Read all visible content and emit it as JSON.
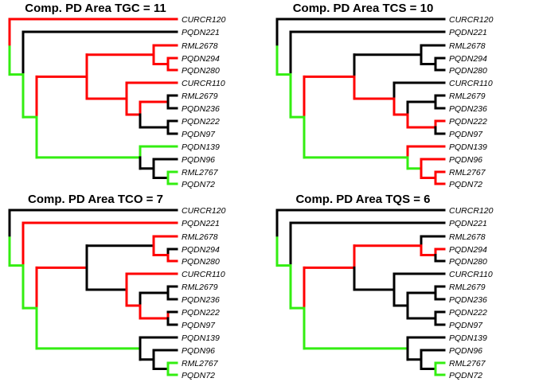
{
  "colors": {
    "black": "#000000",
    "red": "#ff0000",
    "green": "#33ee11"
  },
  "tips": [
    "CURCR120",
    "PQDN221",
    "RML2678",
    "PQDN294",
    "PQDN280",
    "CURCR110",
    "RML2679",
    "PQDN236",
    "PQDN222",
    "PQDN97",
    "PQDN139",
    "PQDN96",
    "RML2767",
    "PQDN72"
  ],
  "panels": [
    {
      "title": "Comp. PD Area TGC = 11",
      "edges": {
        "e1": "red",
        "e2": "green",
        "e3": "black",
        "e4": "green",
        "e5": "red",
        "e6": "red",
        "e7": "red",
        "e8": "red",
        "e9": "red",
        "e10": "red",
        "e11": "red",
        "e12": "red",
        "e13": "red",
        "e14": "red",
        "e15": "black",
        "e16": "black",
        "e17": "black",
        "e18": "black",
        "e19": "black",
        "e20": "black",
        "e21": "black",
        "e22": "green",
        "e23": "black",
        "e24": "black",
        "e25": "green",
        "e26": "green",
        "e27": "green"
      }
    },
    {
      "title": "Comp. PD Area TCS = 10",
      "edges": {
        "e1": "black",
        "e2": "green",
        "e3": "black",
        "e4": "green",
        "e5": "red",
        "e6": "black",
        "e7": "black",
        "e8": "black",
        "e9": "black",
        "e10": "black",
        "e11": "red",
        "e12": "black",
        "e13": "red",
        "e14": "black",
        "e15": "black",
        "e16": "black",
        "e17": "red",
        "e18": "red",
        "e19": "red",
        "e20": "black",
        "e21": "green",
        "e22": "red",
        "e23": "red",
        "e24": "red",
        "e25": "red",
        "e26": "red",
        "e27": "green"
      }
    },
    {
      "title": "Comp. PD Area TCO = 7",
      "edges": {
        "e1": "black",
        "e2": "green",
        "e3": "red",
        "e4": "green",
        "e5": "red",
        "e6": "black",
        "e7": "red",
        "e8": "red",
        "e9": "black",
        "e10": "red",
        "e11": "black",
        "e12": "red",
        "e13": "red",
        "e14": "black",
        "e15": "black",
        "e16": "black",
        "e17": "red",
        "e18": "red",
        "e19": "black",
        "e20": "black",
        "e21": "black",
        "e22": "black",
        "e23": "black",
        "e24": "black",
        "e25": "green",
        "e26": "green",
        "e27": "green"
      }
    },
    {
      "title": "Comp. PD Area TQS = 6",
      "edges": {
        "e1": "black",
        "e2": "green",
        "e3": "black",
        "e4": "green",
        "e5": "red",
        "e6": "red",
        "e7": "black",
        "e8": "red",
        "e9": "red",
        "e10": "black",
        "e11": "black",
        "e12": "black",
        "e13": "black",
        "e14": "black",
        "e15": "black",
        "e16": "black",
        "e17": "black",
        "e18": "black",
        "e19": "black",
        "e20": "black",
        "e21": "black",
        "e22": "black",
        "e23": "black",
        "e24": "black",
        "e25": "green",
        "e26": "green",
        "e27": "green"
      }
    }
  ]
}
